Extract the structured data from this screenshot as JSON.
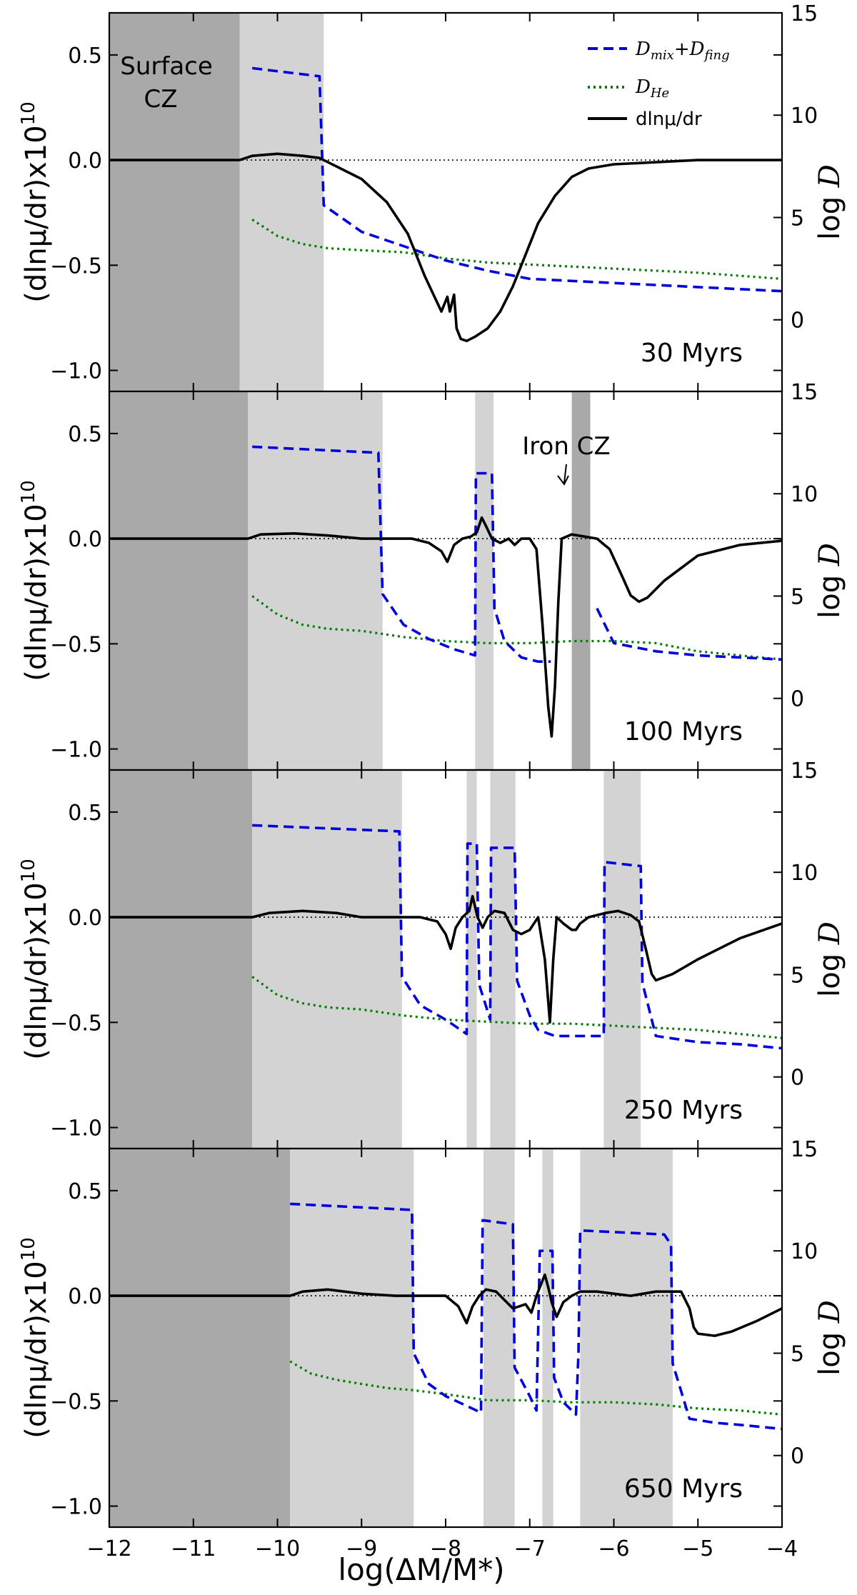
{
  "figure": {
    "xlabel": "log(ΔM/M*)",
    "ylabel_left": "(dlnμ/dr)x10",
    "ylabel_left_exp": "10",
    "ylabel_right": "log ",
    "ylabel_right_var": "D"
  },
  "legend": {
    "dmix_main": "D",
    "dmix_sub": "mix",
    "dmix_plus": "+",
    "dfing_main": "D",
    "dfing_sub": "fing",
    "dhe_main": "D",
    "dhe_sub": "He",
    "mu_label": "dlnμ/dr"
  },
  "annotations": {
    "surface_cz_1": "Surface",
    "surface_cz_2": "CZ",
    "iron_cz": "Iron CZ"
  },
  "colors": {
    "surface_cz": "#a9a9a9",
    "mixing_zone": "#d3d3d3",
    "iron_cz": "#a9a9a9",
    "mu_line": "#000000",
    "dmix_line": "#0000dd",
    "dhe_line": "#008000"
  },
  "chart_data": [
    {
      "type": "line",
      "age": "30 Myrs",
      "xlim": [
        -12,
        -4
      ],
      "ylim_left": [
        -1.1,
        0.7
      ],
      "ylim_right": [
        -3.5,
        15
      ],
      "x_ticks": [
        -12,
        -11,
        -10,
        -9,
        -8,
        -7,
        -6,
        -5,
        -4
      ],
      "left_ticks": [
        -1.0,
        -0.5,
        0.0,
        0.5
      ],
      "right_ticks": [
        0,
        5,
        10,
        15
      ],
      "shaded": [
        {
          "from": -12,
          "to": -10.45,
          "kind": "surface"
        },
        {
          "from": -10.45,
          "to": -9.45,
          "kind": "mixing"
        }
      ],
      "series": [
        {
          "name": "dlnμ/dr",
          "axis": "left",
          "x": [
            -12,
            -10.45,
            -10.3,
            -10.0,
            -9.7,
            -9.5,
            -9.3,
            -9.0,
            -8.7,
            -8.45,
            -8.25,
            -8.05,
            -7.98,
            -7.95,
            -7.9,
            -7.87,
            -7.82,
            -7.75,
            -7.65,
            -7.5,
            -7.35,
            -7.2,
            -7.05,
            -6.9,
            -6.7,
            -6.5,
            -6.3,
            -6.0,
            -5.5,
            -5.0,
            -4.5,
            -4.0
          ],
          "y": [
            0,
            0,
            0.02,
            0.03,
            0.02,
            0.01,
            -0.03,
            -0.09,
            -0.2,
            -0.35,
            -0.55,
            -0.72,
            -0.65,
            -0.72,
            -0.64,
            -0.8,
            -0.85,
            -0.86,
            -0.84,
            -0.8,
            -0.72,
            -0.6,
            -0.45,
            -0.3,
            -0.17,
            -0.08,
            -0.04,
            -0.02,
            -0.01,
            0,
            0,
            0
          ]
        },
        {
          "name": "D_mix+D_fing",
          "axis": "right",
          "x": [
            -10.3,
            -9.5,
            -9.45,
            -9.0,
            -8.5,
            -8.0,
            -7.5,
            -7.0,
            -6.5,
            -6.0,
            -5.5,
            -5.0,
            -4.5,
            -4.0
          ],
          "y": [
            12.3,
            11.9,
            5.6,
            4.3,
            3.6,
            2.9,
            2.4,
            2.0,
            1.9,
            1.8,
            1.7,
            1.6,
            1.5,
            1.4
          ]
        },
        {
          "name": "D_He",
          "axis": "right",
          "x": [
            -10.3,
            -10.0,
            -9.7,
            -9.4,
            -9.0,
            -8.5,
            -8.0,
            -7.5,
            -7.0,
            -6.5,
            -6.0,
            -5.5,
            -5.0,
            -4.5,
            -4.0
          ],
          "y": [
            4.9,
            4.1,
            3.7,
            3.5,
            3.4,
            3.3,
            3.0,
            2.8,
            2.7,
            2.6,
            2.5,
            2.4,
            2.3,
            2.15,
            2.0
          ]
        }
      ]
    },
    {
      "type": "line",
      "age": "100 Myrs",
      "xlim": [
        -12,
        -4
      ],
      "ylim_left": [
        -1.1,
        0.7
      ],
      "ylim_right": [
        -3.5,
        15
      ],
      "x_ticks": [
        -12,
        -11,
        -10,
        -9,
        -8,
        -7,
        -6,
        -5,
        -4
      ],
      "left_ticks": [
        -1.0,
        -0.5,
        0.0,
        0.5
      ],
      "right_ticks": [
        0,
        5,
        10,
        15
      ],
      "shaded": [
        {
          "from": -12,
          "to": -10.35,
          "kind": "surface"
        },
        {
          "from": -10.35,
          "to": -8.75,
          "kind": "mixing"
        },
        {
          "from": -7.65,
          "to": -7.43,
          "kind": "mixing"
        },
        {
          "from": -6.5,
          "to": -6.28,
          "kind": "iron"
        }
      ],
      "series": [
        {
          "name": "dlnμ/dr",
          "axis": "left",
          "x": [
            -12,
            -10.35,
            -10.2,
            -9.8,
            -9.4,
            -9.0,
            -8.75,
            -8.4,
            -8.2,
            -8.05,
            -7.98,
            -7.9,
            -7.8,
            -7.7,
            -7.63,
            -7.57,
            -7.52,
            -7.45,
            -7.35,
            -7.25,
            -7.18,
            -7.1,
            -7.0,
            -6.92,
            -6.85,
            -6.78,
            -6.74,
            -6.7,
            -6.66,
            -6.62,
            -6.5,
            -6.2,
            -6.05,
            -5.9,
            -5.8,
            -5.7,
            -5.6,
            -5.4,
            -5.0,
            -4.5,
            -4.0
          ],
          "y": [
            0,
            0,
            0.02,
            0.025,
            0.015,
            0.0,
            0,
            0,
            -0.02,
            -0.06,
            -0.11,
            -0.03,
            0,
            0.01,
            0.03,
            0.1,
            0.06,
            0.0,
            -0.02,
            0,
            -0.03,
            0,
            0,
            -0.05,
            -0.4,
            -0.8,
            -0.94,
            -0.7,
            -0.3,
            0.0,
            0.02,
            0.0,
            -0.05,
            -0.18,
            -0.27,
            -0.3,
            -0.28,
            -0.2,
            -0.08,
            -0.03,
            -0.01
          ]
        },
        {
          "name": "D_mix+D_fing",
          "axis": "right",
          "x": [
            -10.3,
            -8.8,
            -8.75,
            -8.5,
            -8.2,
            -7.9,
            -7.65,
            -7.64,
            -7.45,
            -7.42,
            -7.3,
            -7.1,
            -6.9,
            -6.75,
            -6.74,
            -6.3,
            -6.2,
            -6.0,
            -5.5,
            -5.0,
            -4.5,
            -4.0
          ],
          "y": [
            12.3,
            12.0,
            5.1,
            3.6,
            2.9,
            2.4,
            2.1,
            11.0,
            11.0,
            4.4,
            2.8,
            2.0,
            1.8,
            1.8,
            null,
            null,
            4.4,
            2.7,
            2.3,
            2.1,
            2.0,
            1.9
          ]
        },
        {
          "name": "D_He",
          "axis": "right",
          "x": [
            -10.3,
            -10.0,
            -9.7,
            -9.4,
            -9.0,
            -8.5,
            -8.0,
            -7.5,
            -7.0,
            -6.5,
            -6.0,
            -5.5,
            -5.0,
            -4.5,
            -4.0
          ],
          "y": [
            5.0,
            4.1,
            3.6,
            3.4,
            3.3,
            3.0,
            2.8,
            2.7,
            2.7,
            2.8,
            2.8,
            2.7,
            2.3,
            2.1,
            1.9
          ]
        }
      ]
    },
    {
      "type": "line",
      "age": "250 Myrs",
      "xlim": [
        -12,
        -4
      ],
      "ylim_left": [
        -1.1,
        0.7
      ],
      "ylim_right": [
        -3.5,
        15
      ],
      "x_ticks": [
        -12,
        -11,
        -10,
        -9,
        -8,
        -7,
        -6,
        -5,
        -4
      ],
      "left_ticks": [
        -1.0,
        -0.5,
        0.0,
        0.5
      ],
      "right_ticks": [
        0,
        5,
        10,
        15
      ],
      "shaded": [
        {
          "from": -12,
          "to": -10.3,
          "kind": "surface"
        },
        {
          "from": -10.3,
          "to": -8.52,
          "kind": "mixing"
        },
        {
          "from": -7.75,
          "to": -7.63,
          "kind": "mixing"
        },
        {
          "from": -7.47,
          "to": -7.17,
          "kind": "mixing"
        },
        {
          "from": -6.12,
          "to": -5.68,
          "kind": "mixing"
        }
      ],
      "series": [
        {
          "name": "dlnμ/dr",
          "axis": "left",
          "x": [
            -12,
            -10.3,
            -10.1,
            -9.7,
            -9.3,
            -9.0,
            -8.6,
            -8.3,
            -8.1,
            -8.0,
            -7.94,
            -7.88,
            -7.8,
            -7.72,
            -7.68,
            -7.62,
            -7.56,
            -7.5,
            -7.42,
            -7.3,
            -7.2,
            -7.1,
            -7.0,
            -6.9,
            -6.82,
            -6.76,
            -6.72,
            -6.68,
            -6.6,
            -6.5,
            -6.45,
            -6.4,
            -6.3,
            -6.1,
            -5.95,
            -5.8,
            -5.7,
            -5.62,
            -5.55,
            -5.5,
            -5.3,
            -5.0,
            -4.5,
            -4.0
          ],
          "y": [
            0,
            0,
            0.02,
            0.03,
            0.02,
            0.0,
            0,
            0,
            -0.02,
            -0.08,
            -0.15,
            -0.05,
            0.0,
            0.03,
            0.1,
            0.0,
            -0.05,
            0.0,
            0.03,
            0.02,
            -0.06,
            -0.08,
            -0.06,
            0.0,
            -0.2,
            -0.5,
            -0.2,
            0.0,
            -0.03,
            -0.06,
            -0.06,
            -0.03,
            0.0,
            0.02,
            0.03,
            0.01,
            -0.02,
            -0.15,
            -0.27,
            -0.3,
            -0.27,
            -0.2,
            -0.1,
            -0.03
          ]
        },
        {
          "name": "D_mix+D_fing",
          "axis": "right",
          "x": [
            -10.3,
            -8.55,
            -8.52,
            -8.3,
            -8.0,
            -7.75,
            -7.74,
            -7.63,
            -7.6,
            -7.5,
            -7.47,
            -7.46,
            -7.18,
            -7.15,
            -7.0,
            -6.9,
            -6.7,
            -6.12,
            -6.11,
            -5.68,
            -5.66,
            -5.5,
            -5.0,
            -4.5,
            -4.0
          ],
          "y": [
            12.3,
            12.0,
            4.9,
            3.5,
            2.8,
            2.1,
            11.4,
            11.4,
            4.5,
            3.2,
            2.8,
            11.2,
            11.2,
            4.7,
            3.0,
            2.3,
            2.0,
            2.0,
            10.5,
            10.3,
            4.6,
            2.0,
            1.7,
            1.6,
            1.4
          ]
        },
        {
          "name": "D_He",
          "axis": "right",
          "x": [
            -10.3,
            -10.0,
            -9.7,
            -9.4,
            -9.0,
            -8.5,
            -8.0,
            -7.5,
            -7.0,
            -6.5,
            -6.0,
            -5.5,
            -5.0,
            -4.5,
            -4.0
          ],
          "y": [
            4.9,
            4.0,
            3.6,
            3.4,
            3.3,
            3.0,
            2.8,
            2.7,
            2.6,
            2.6,
            2.5,
            2.4,
            2.3,
            2.1,
            1.9
          ]
        }
      ]
    },
    {
      "type": "line",
      "age": "650 Myrs",
      "xlim": [
        -12,
        -4
      ],
      "ylim_left": [
        -1.1,
        0.7
      ],
      "ylim_right": [
        -3.5,
        15
      ],
      "x_ticks": [
        -12,
        -11,
        -10,
        -9,
        -8,
        -7,
        -6,
        -5,
        -4
      ],
      "left_ticks": [
        -1.0,
        -0.5,
        0.0,
        0.5
      ],
      "right_ticks": [
        0,
        5,
        10,
        15
      ],
      "shaded": [
        {
          "from": -12,
          "to": -9.85,
          "kind": "surface"
        },
        {
          "from": -9.85,
          "to": -8.38,
          "kind": "mixing"
        },
        {
          "from": -7.55,
          "to": -7.18,
          "kind": "mixing"
        },
        {
          "from": -6.85,
          "to": -6.72,
          "kind": "mixing"
        },
        {
          "from": -6.4,
          "to": -5.3,
          "kind": "mixing"
        }
      ],
      "series": [
        {
          "name": "dlnμ/dr",
          "axis": "left",
          "x": [
            -12,
            -9.85,
            -9.7,
            -9.4,
            -9.0,
            -8.6,
            -8.3,
            -8.0,
            -7.85,
            -7.75,
            -7.68,
            -7.6,
            -7.52,
            -7.4,
            -7.3,
            -7.2,
            -7.05,
            -6.98,
            -6.92,
            -6.86,
            -6.82,
            -6.78,
            -6.74,
            -6.68,
            -6.6,
            -6.5,
            -6.4,
            -6.2,
            -6.0,
            -5.8,
            -5.5,
            -5.2,
            -5.1,
            -5.05,
            -5.0,
            -4.8,
            -4.6,
            -4.3,
            -4.0
          ],
          "y": [
            0,
            0,
            0.02,
            0.03,
            0.01,
            0.0,
            0,
            0,
            -0.05,
            -0.13,
            -0.05,
            0.0,
            0.03,
            0.02,
            -0.02,
            -0.06,
            -0.04,
            -0.08,
            0.0,
            0.06,
            0.1,
            0.04,
            -0.03,
            -0.1,
            -0.03,
            0.0,
            0.02,
            0.02,
            0.01,
            0.0,
            0.02,
            0.02,
            -0.06,
            -0.15,
            -0.18,
            -0.19,
            -0.17,
            -0.12,
            -0.06
          ]
        },
        {
          "name": "D_mix+D_fing",
          "axis": "right",
          "x": [
            -9.85,
            -8.4,
            -8.38,
            -8.2,
            -8.0,
            -7.58,
            -7.56,
            -7.2,
            -7.18,
            -7.0,
            -6.92,
            -6.88,
            -6.85,
            -6.73,
            -6.71,
            -6.6,
            -6.45,
            -6.42,
            -6.4,
            -5.4,
            -5.32,
            -5.3,
            -5.1,
            -4.8,
            -4.5,
            -4.0
          ],
          "y": [
            12.3,
            12.0,
            5.0,
            3.5,
            2.9,
            2.1,
            11.5,
            11.3,
            4.3,
            2.9,
            2.2,
            10.0,
            10.0,
            10.0,
            3.8,
            2.6,
            2.0,
            5.0,
            11.0,
            10.8,
            10.3,
            4.5,
            1.8,
            1.6,
            1.5,
            1.3
          ]
        },
        {
          "name": "D_He",
          "axis": "right",
          "x": [
            -9.85,
            -9.6,
            -9.3,
            -9.0,
            -8.7,
            -8.4,
            -8.0,
            -7.5,
            -7.0,
            -6.5,
            -6.0,
            -5.5,
            -5.0,
            -4.5,
            -4.0
          ],
          "y": [
            4.6,
            4.0,
            3.7,
            3.5,
            3.3,
            3.2,
            3.0,
            2.7,
            2.7,
            2.6,
            2.6,
            2.5,
            2.3,
            2.2,
            2.0
          ]
        }
      ]
    }
  ]
}
